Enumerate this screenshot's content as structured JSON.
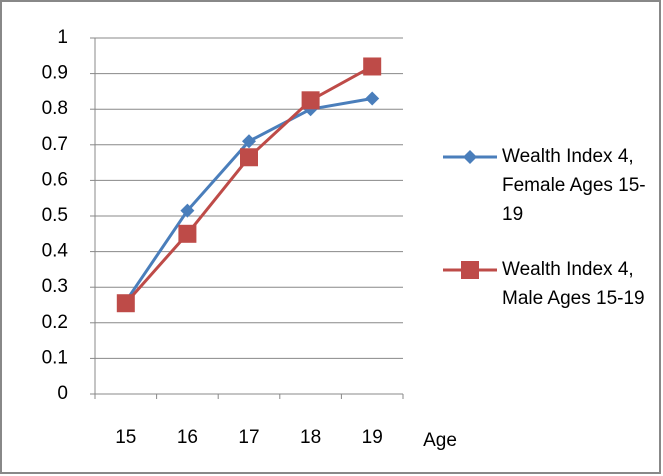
{
  "chart_data": {
    "type": "line",
    "x_label": "Age",
    "categories": [
      "15",
      "16",
      "17",
      "18",
      "19"
    ],
    "series": [
      {
        "name": "Wealth Index 4, Female Ages 15-19",
        "color": "#4a7ebb",
        "marker": "diamond",
        "values": [
          0.26,
          0.515,
          0.71,
          0.8,
          0.83
        ]
      },
      {
        "name": "Wealth Index 4, Male Ages 15-19",
        "color": "#be4b48",
        "marker": "square",
        "values": [
          0.255,
          0.45,
          0.665,
          0.825,
          0.92
        ]
      }
    ],
    "ylim": [
      0,
      1
    ],
    "yticks": [
      0,
      0.1,
      0.2,
      0.3,
      0.4,
      0.5,
      0.6,
      0.7,
      0.8,
      0.9,
      1
    ],
    "grid": true,
    "legend": "right"
  }
}
